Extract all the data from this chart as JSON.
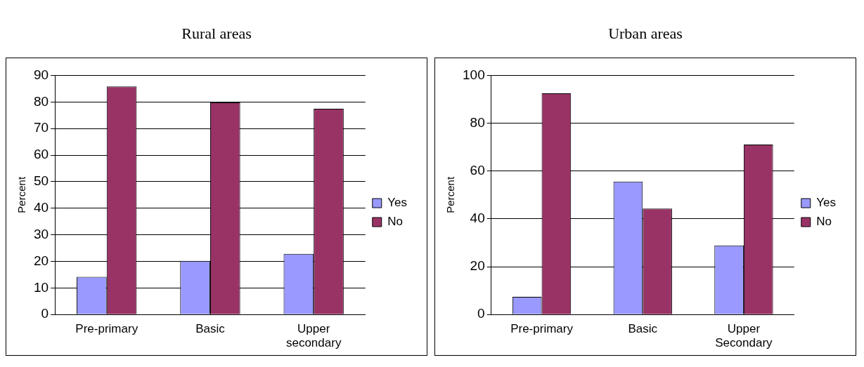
{
  "chart_data": [
    {
      "type": "bar",
      "title": "Rural areas",
      "ylabel": "Percent",
      "categories": [
        "Pre-primary",
        "Basic",
        "Upper secondary"
      ],
      "series": [
        {
          "name": "Yes",
          "color": "#9999ff",
          "values": [
            14.2,
            20.2,
            22.8
          ]
        },
        {
          "name": "No",
          "color": "#993366",
          "values": [
            85.8,
            79.8,
            77.4
          ]
        }
      ],
      "ylim": [
        0,
        90
      ],
      "yticks": [
        0,
        10,
        20,
        30,
        40,
        50,
        60,
        70,
        80,
        90
      ],
      "grid": "y",
      "legend": "right"
    },
    {
      "type": "bar",
      "title": "Urban areas",
      "ylabel": "Percent",
      "categories": [
        "Pre-primary",
        "Basic",
        "Upper Secondary"
      ],
      "series": [
        {
          "name": "Yes",
          "color": "#9999ff",
          "values": [
            7.4,
            55.6,
            28.9
          ]
        },
        {
          "name": "No",
          "color": "#993366",
          "values": [
            92.5,
            44.3,
            71.1
          ]
        }
      ],
      "ylim": [
        0,
        100
      ],
      "yticks": [
        0,
        20,
        40,
        60,
        80,
        100
      ],
      "grid": "y",
      "legend": "right"
    }
  ]
}
